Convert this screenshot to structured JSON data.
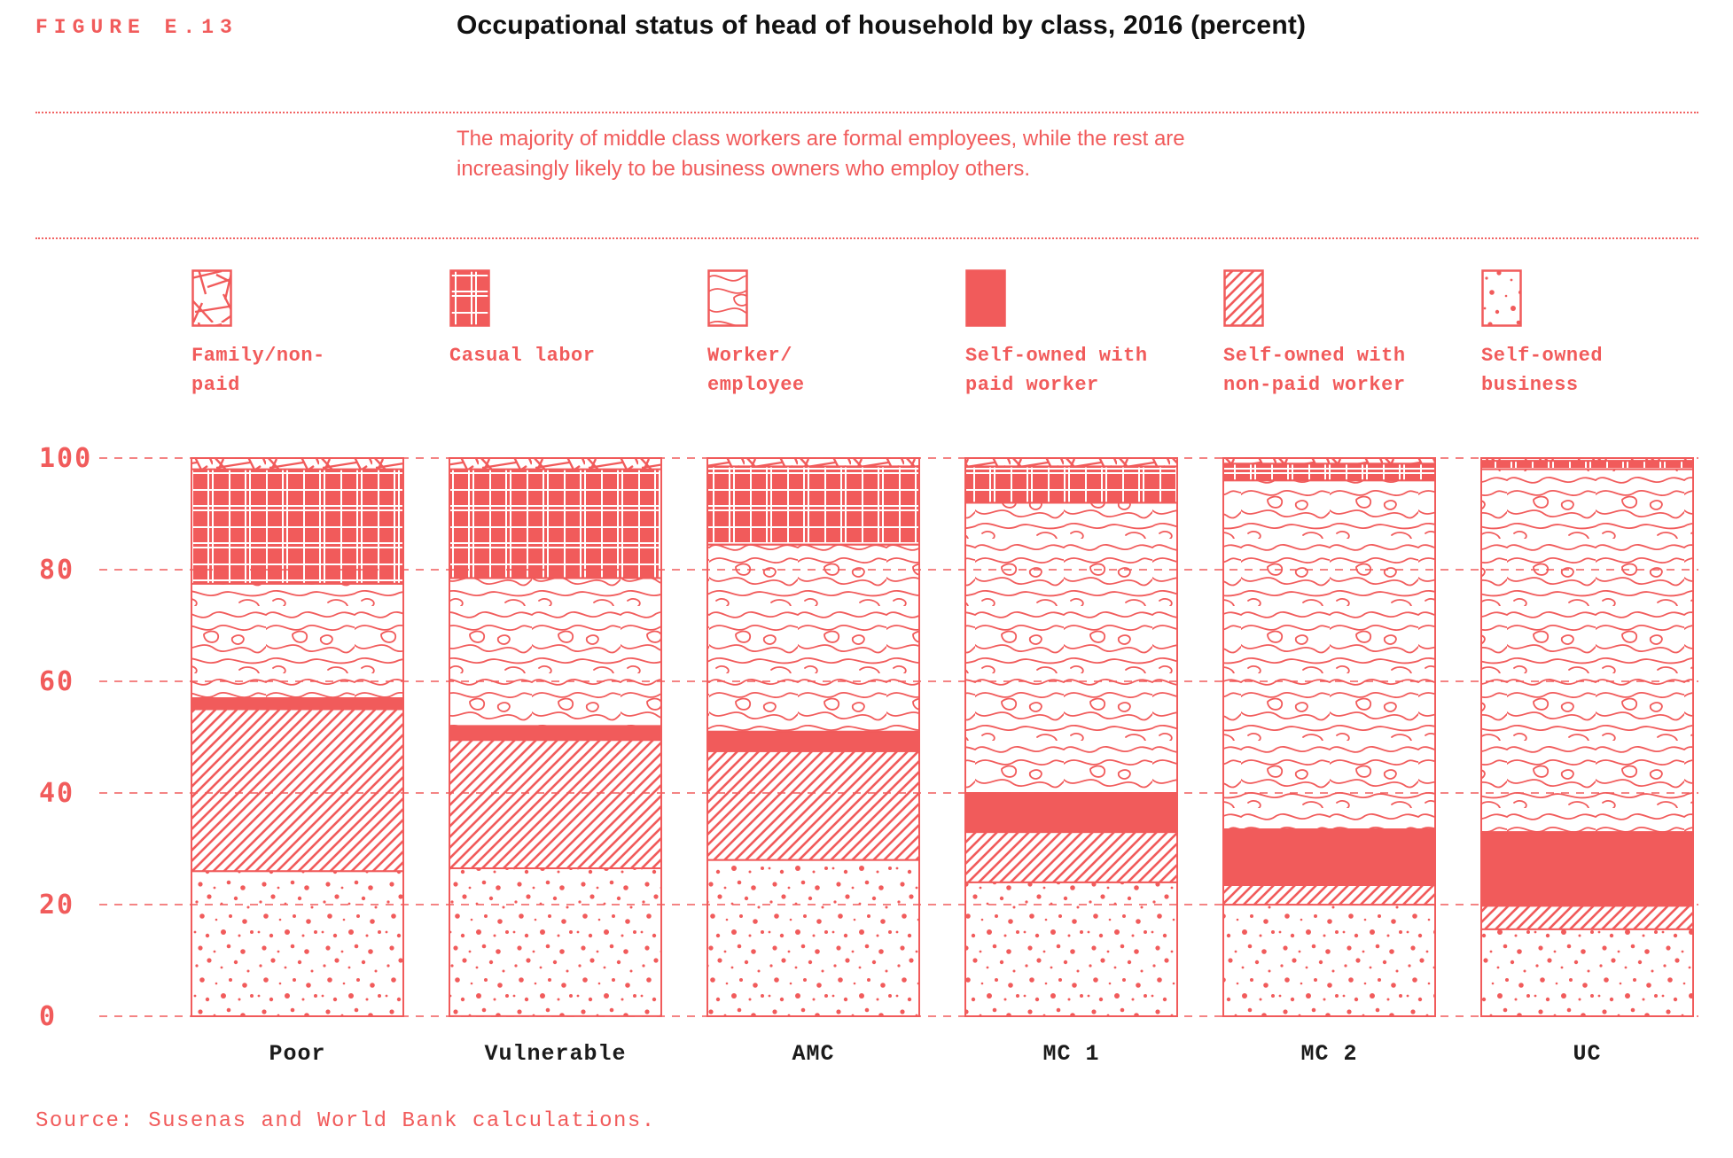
{
  "figure_label": "FIGURE E.13",
  "title": "Occupational status of head of household by class, 2016 (percent)",
  "subtitle_lines": [
    "The majority of middle class workers are formal employees, while the rest are",
    "increasingly likely to be business owners who employ others."
  ],
  "source": "Source: Susenas and World Bank calculations.",
  "accent_color": "#F15B5B",
  "text_color": "#1b1b1b",
  "legend": {
    "items": [
      {
        "pattern": "family",
        "lines": [
          "Family/non-",
          "paid"
        ]
      },
      {
        "pattern": "casual",
        "lines": [
          "Casual labor",
          ""
        ]
      },
      {
        "pattern": "worker",
        "lines": [
          "Worker/",
          "employee"
        ]
      },
      {
        "pattern": "paid",
        "lines": [
          "Self-owned with",
          "paid worker"
        ]
      },
      {
        "pattern": "nonpaid",
        "lines": [
          "Self-owned with",
          "non-paid worker"
        ]
      },
      {
        "pattern": "business",
        "lines": [
          "Self-owned",
          "business"
        ]
      }
    ]
  },
  "chart_data": {
    "type": "bar",
    "stacked": true,
    "title": "Occupational status of head of household by class, 2016 (percent)",
    "xlabel": "",
    "ylabel": "",
    "ylim": [
      0,
      100
    ],
    "grid": "horizontal-dashed",
    "legend_position": "top",
    "categories": [
      "Poor",
      "Vulnerable",
      "AMC",
      "MC 1",
      "MC 2",
      "UC"
    ],
    "yticks": [
      100,
      80,
      60,
      40,
      20,
      0
    ],
    "series": [
      {
        "name": "Family/non-paid",
        "pattern": "family",
        "values": [
          2,
          2,
          1.5,
          1.5,
          1,
          0.5
        ]
      },
      {
        "name": "Casual labor",
        "pattern": "casual",
        "values": [
          20.5,
          19.5,
          14,
          6.5,
          3,
          1.5
        ]
      },
      {
        "name": "Worker/employee",
        "pattern": "worker",
        "values": [
          20.5,
          26.5,
          33.5,
          52,
          62.5,
          65
        ]
      },
      {
        "name": "Self-owned with paid worker",
        "pattern": "paid",
        "values": [
          2,
          2.5,
          3.5,
          7,
          10,
          13.2
        ]
      },
      {
        "name": "Self-owned with non-paid worker",
        "pattern": "nonpaid",
        "values": [
          29,
          23,
          19.5,
          9,
          3.5,
          4.2
        ]
      },
      {
        "name": "Self-owned business",
        "pattern": "business",
        "values": [
          26,
          26.5,
          28,
          24,
          20,
          15.6
        ]
      }
    ],
    "stack_order_bottom_to_top": [
      "Self-owned business",
      "Self-owned with non-paid worker",
      "Self-owned with paid worker",
      "Worker/employee",
      "Casual labor",
      "Family/non-paid"
    ]
  }
}
